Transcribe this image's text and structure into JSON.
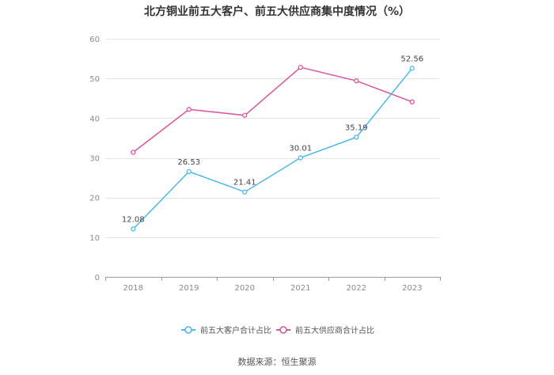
{
  "chart_data": {
    "type": "line",
    "title": "北方铜业前五大客户、前五大供应商集中度情况（%）",
    "categories": [
      "2018",
      "2019",
      "2020",
      "2021",
      "2022",
      "2023"
    ],
    "series": [
      {
        "name": "前五大客户合计占比",
        "values": [
          12.08,
          26.53,
          21.41,
          30.01,
          35.19,
          52.56
        ],
        "color": "#4db8e8",
        "labels_shown": true
      },
      {
        "name": "前五大供应商合计占比",
        "values": [
          31.4,
          42.2,
          40.7,
          52.8,
          49.4,
          44.1
        ],
        "color": "#d9559e",
        "labels_shown": false
      }
    ],
    "y_ticks": [
      0,
      10,
      20,
      30,
      40,
      50,
      60
    ],
    "ylim": [
      0,
      60
    ],
    "grid": true,
    "legend_position": "bottom",
    "source": "数据来源：恒生聚源"
  }
}
